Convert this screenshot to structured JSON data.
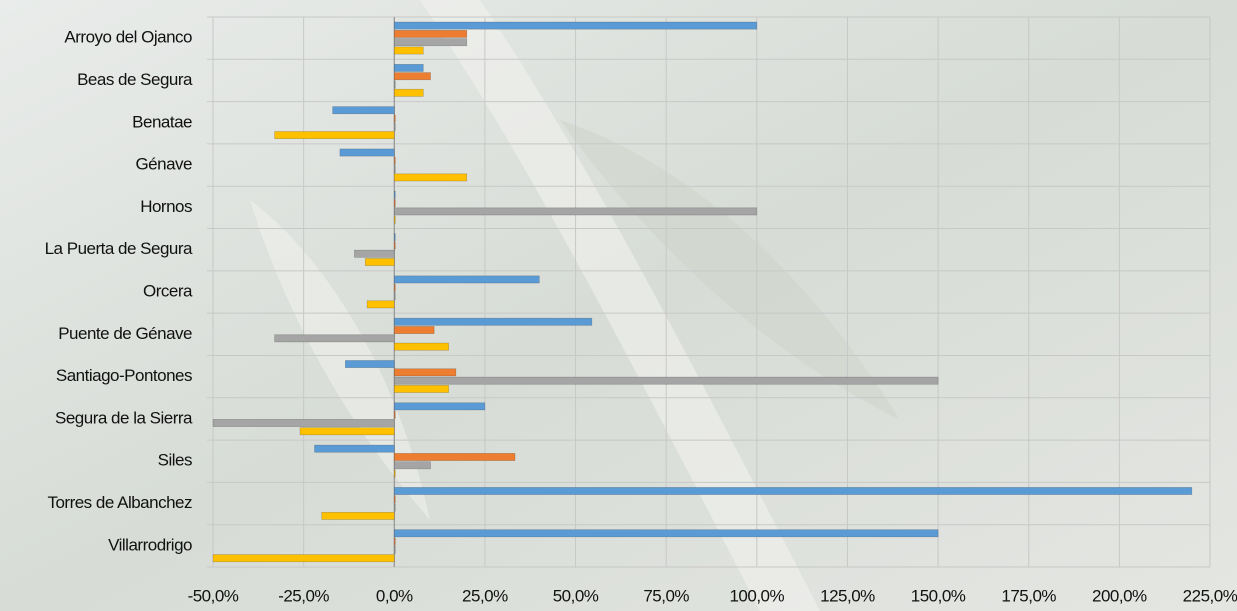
{
  "chart_data": {
    "type": "hbar",
    "categories": [
      "Arroyo del Ojanco",
      "Beas de Segura",
      "Benatae",
      "Génave",
      "Hornos",
      "La Puerta de Segura",
      "Orcera",
      "Puente de Génave",
      "Santiago-Pontones",
      "Segura de la Sierra",
      "Siles",
      "Torres de Albanchez",
      "Villarrodrigo"
    ],
    "series": [
      {
        "color": "#5b9bd5",
        "values": [
          100,
          8,
          -17,
          -15,
          0,
          0,
          40,
          54.5,
          -13.5,
          25,
          -22,
          220,
          150
        ]
      },
      {
        "color": "#ed7d31",
        "values": [
          20,
          10,
          0,
          0,
          0,
          0,
          0,
          11,
          17,
          0,
          33.3,
          0,
          0
        ]
      },
      {
        "color": "#a5a5a5",
        "values": [
          20,
          0,
          0,
          0,
          100,
          -11,
          0,
          -33,
          150,
          -50,
          10,
          0,
          0
        ]
      },
      {
        "color": "#ffc000",
        "values": [
          8,
          8,
          -33,
          20,
          0,
          -8,
          -7.5,
          15,
          15,
          -26,
          0,
          -20,
          -50
        ]
      }
    ],
    "xlim": [
      -50,
      225
    ],
    "xticks": [
      {
        "value": -50,
        "label": "-50,0%"
      },
      {
        "value": -25,
        "label": "-25,0%"
      },
      {
        "value": 0,
        "label": "0,0%"
      },
      {
        "value": 25,
        "label": "25,0%"
      },
      {
        "value": 50,
        "label": "50,0%"
      },
      {
        "value": 75,
        "label": "75,0%"
      },
      {
        "value": 100,
        "label": "100,0%"
      },
      {
        "value": 125,
        "label": "125,0%"
      },
      {
        "value": 150,
        "label": "150,0%"
      },
      {
        "value": 175,
        "label": "175,0%"
      },
      {
        "value": 200,
        "label": "200,0%"
      },
      {
        "value": 225,
        "label": "225,0%"
      }
    ],
    "grid": true
  }
}
